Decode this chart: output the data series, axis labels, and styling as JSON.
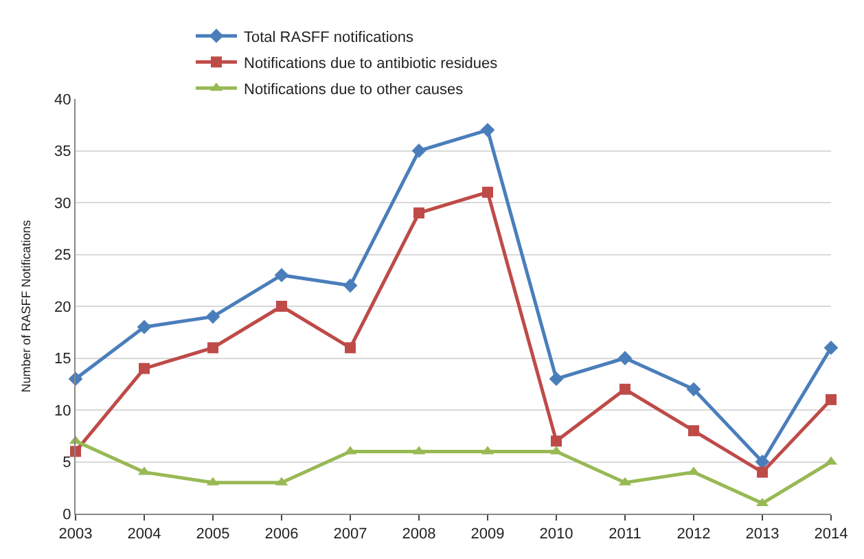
{
  "chart_data": {
    "type": "line",
    "ylabel": "Number of RASFF Notifications",
    "categories": [
      "2003",
      "2004",
      "2005",
      "2006",
      "2007",
      "2008",
      "2009",
      "2010",
      "2011",
      "2012",
      "2013",
      "2014"
    ],
    "series": [
      {
        "name": "Total RASFF notifications",
        "color": "#4a7ebb",
        "marker": "diamond",
        "values": [
          13,
          18,
          19,
          23,
          22,
          35,
          37,
          13,
          15,
          12,
          5,
          16
        ]
      },
      {
        "name": "Notifications due to antibiotic residues",
        "color": "#be4b48",
        "marker": "square",
        "values": [
          6,
          14,
          16,
          20,
          16,
          29,
          31,
          7,
          12,
          8,
          4,
          11
        ]
      },
      {
        "name": "Notifications due to other causes",
        "color": "#98b954",
        "marker": "triangle",
        "values": [
          7,
          4,
          3,
          3,
          6,
          6,
          6,
          6,
          3,
          4,
          1,
          5
        ]
      }
    ],
    "ylim": [
      0,
      40
    ],
    "yticks": [
      0,
      5,
      10,
      15,
      20,
      25,
      30,
      35,
      40
    ],
    "grid": "y",
    "legend": "top left",
    "line_style": "solid"
  }
}
